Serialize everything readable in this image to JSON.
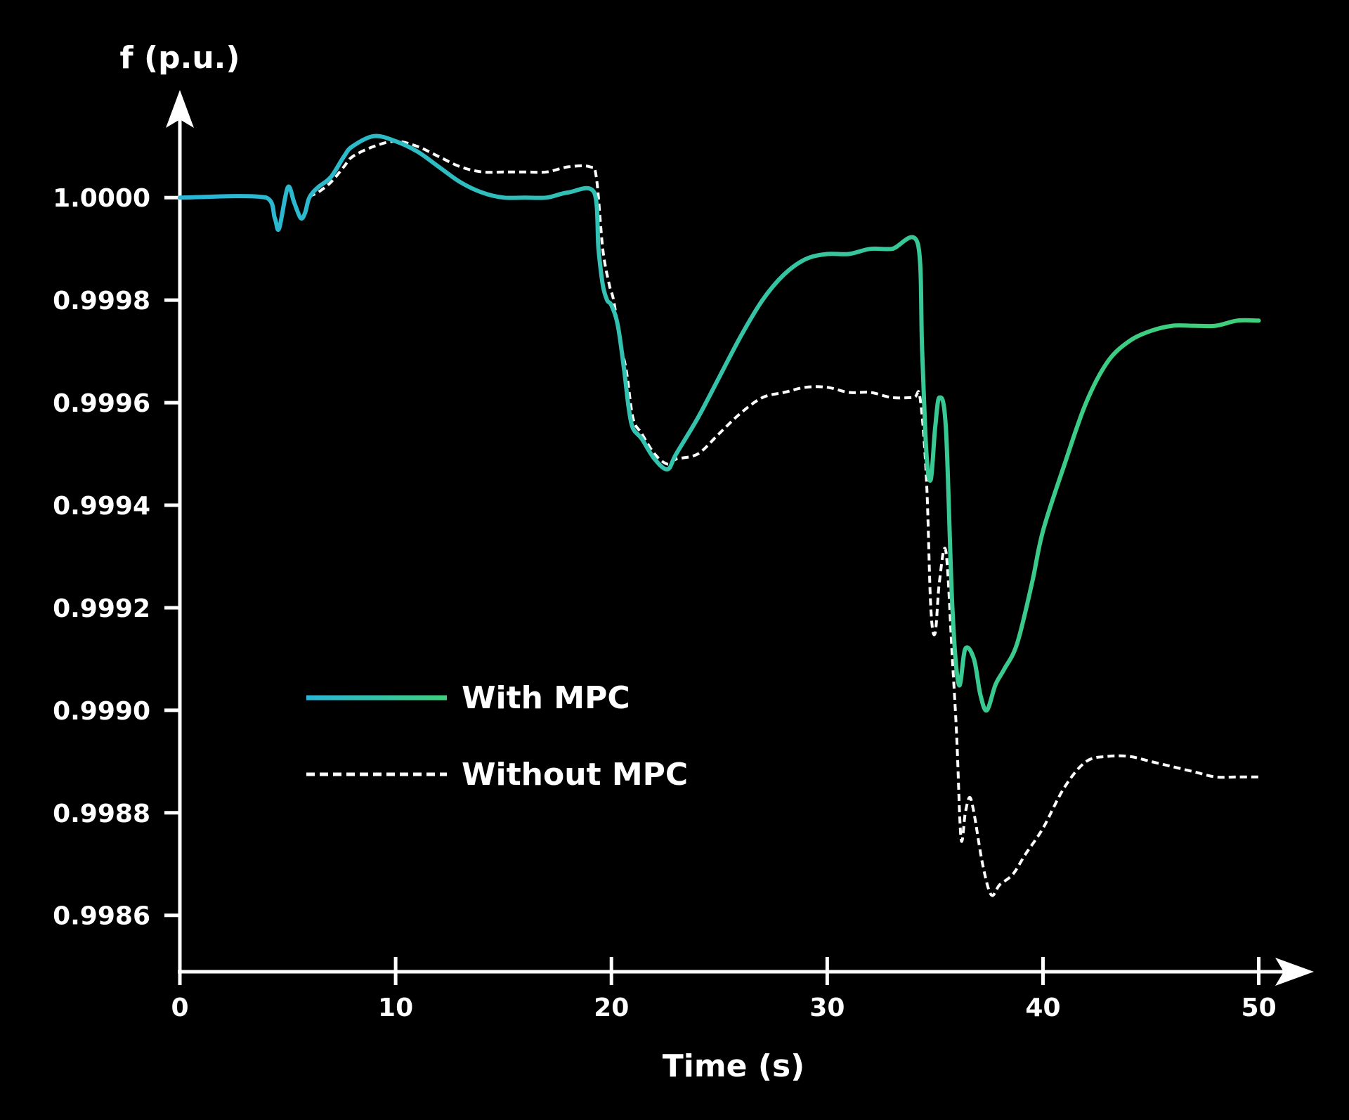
{
  "chart_data": {
    "type": "line",
    "title": "",
    "xlabel": "Time (s)",
    "ylabel": "f (p.u.)",
    "xlim": [
      0,
      52
    ],
    "ylim": [
      0.99849,
      1.00021
    ],
    "x_ticks": [
      0,
      10,
      20,
      30,
      40,
      50
    ],
    "x_tick_labels": [
      "0",
      "10",
      "20",
      "30",
      "40",
      "50"
    ],
    "y_ticks": [
      1.0,
      0.9998,
      0.9996,
      0.9994,
      0.9992,
      0.999,
      0.9988,
      0.9986
    ],
    "y_tick_labels": [
      "1.0000",
      "0.9998",
      "0.9996",
      "0.9994",
      "0.9992",
      "0.9990",
      "0.9988",
      "0.9986"
    ],
    "legend_position": "center-left",
    "colors": {
      "gradient_start": "#29b6d9",
      "gradient_end": "#3ecf7a",
      "dashed": "#ffffff",
      "axis": "#ffffff",
      "background": "#000000"
    },
    "series": [
      {
        "name": "With MPC",
        "style": "solid-gradient",
        "x": [
          0,
          4,
          4.4,
          4.6,
          5.0,
          5.3,
          5.6,
          5.8,
          6.0,
          6.4,
          7.0,
          7.6,
          8.0,
          9.0,
          10.0,
          11.0,
          12.0,
          13.0,
          14.0,
          15.0,
          16.0,
          17.0,
          18.0,
          19.2,
          19.4,
          19.6,
          19.8,
          20.0,
          20.3,
          20.6,
          20.8,
          21.0,
          21.4,
          22.0,
          22.6,
          23.0,
          24.0,
          25.0,
          26.0,
          27.0,
          28.0,
          29.0,
          30.0,
          31.0,
          32.0,
          33.0,
          34.2,
          34.4,
          34.6,
          34.8,
          35.0,
          35.2,
          35.5,
          35.8,
          36.1,
          36.4,
          36.8,
          37.1,
          37.4,
          37.8,
          38.2,
          38.8,
          39.5,
          40.0,
          41.0,
          42.0,
          43.0,
          44.0,
          45.0,
          46.0,
          47.0,
          48.0,
          49.0,
          50.0
        ],
        "y": [
          1.0,
          1.0,
          0.99996,
          0.99994,
          1.00002,
          0.99999,
          0.99996,
          0.99997,
          1.0,
          1.00002,
          1.00004,
          1.00008,
          1.0001,
          1.00012,
          1.00011,
          1.00009,
          1.00006,
          1.00003,
          1.00001,
          1.0,
          1.0,
          1.0,
          1.00001,
          1.00001,
          0.9999,
          0.99983,
          0.9998,
          0.99979,
          0.99975,
          0.99966,
          0.99959,
          0.99955,
          0.99953,
          0.99949,
          0.99947,
          0.9995,
          0.99957,
          0.99965,
          0.99973,
          0.9998,
          0.99985,
          0.99988,
          0.99989,
          0.99989,
          0.9999,
          0.9999,
          0.99991,
          0.9997,
          0.9995,
          0.99945,
          0.99955,
          0.99961,
          0.99955,
          0.9992,
          0.99905,
          0.99912,
          0.9991,
          0.99903,
          0.999,
          0.99905,
          0.99908,
          0.99913,
          0.99925,
          0.99935,
          0.99948,
          0.9996,
          0.99968,
          0.99972,
          0.99974,
          0.99975,
          0.99975,
          0.99975,
          0.99976,
          0.99976
        ]
      },
      {
        "name": "Without MPC",
        "style": "dashed",
        "x": [
          0,
          4,
          4.4,
          4.6,
          5.0,
          5.3,
          5.6,
          5.8,
          6.0,
          6.4,
          7.0,
          7.6,
          8.0,
          9.0,
          10.0,
          11.0,
          12.0,
          13.0,
          14.0,
          15.0,
          16.0,
          17.0,
          18.0,
          19.0,
          19.3,
          19.6,
          19.9,
          20.1,
          20.4,
          20.7,
          21.0,
          21.4,
          22.0,
          22.6,
          23.0,
          24.0,
          25.0,
          26.0,
          27.0,
          28.0,
          29.0,
          30.0,
          31.0,
          32.0,
          33.0,
          34.0,
          34.3,
          34.6,
          34.8,
          35.0,
          35.2,
          35.5,
          35.8,
          36.0,
          36.2,
          36.4,
          36.6,
          36.8,
          37.2,
          37.6,
          38.0,
          38.6,
          39.2,
          40.0,
          41.0,
          42.0,
          43.0,
          44.0,
          45.0,
          46.0,
          47.0,
          48.0,
          49.0,
          50.0
        ],
        "y": [
          1.0,
          1.0,
          0.99996,
          0.99994,
          1.00002,
          0.99999,
          0.99996,
          0.99997,
          1.0,
          1.00001,
          1.00003,
          1.00006,
          1.00008,
          1.0001,
          1.00011,
          1.0001,
          1.00008,
          1.00006,
          1.00005,
          1.00005,
          1.00005,
          1.00005,
          1.00006,
          1.00006,
          1.00004,
          0.9999,
          0.99983,
          0.9998,
          0.99972,
          0.99966,
          0.99957,
          0.99954,
          0.9995,
          0.99948,
          0.99949,
          0.9995,
          0.99954,
          0.99958,
          0.99961,
          0.99962,
          0.99963,
          0.99963,
          0.99962,
          0.99962,
          0.99961,
          0.99961,
          0.99961,
          0.99945,
          0.9992,
          0.99915,
          0.99925,
          0.99931,
          0.9991,
          0.99895,
          0.99875,
          0.9988,
          0.99883,
          0.9988,
          0.9987,
          0.99864,
          0.99866,
          0.99868,
          0.99872,
          0.99877,
          0.99885,
          0.9989,
          0.99891,
          0.99891,
          0.9989,
          0.99889,
          0.99888,
          0.99887,
          0.99887,
          0.99887
        ]
      }
    ]
  }
}
